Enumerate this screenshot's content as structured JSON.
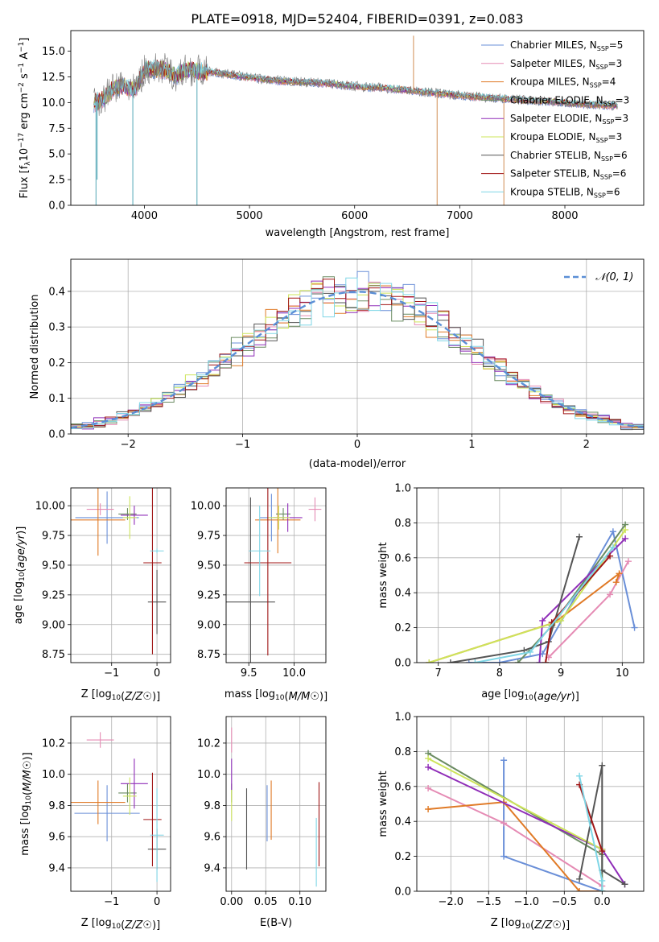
{
  "figure_title": "PLATE=0918, MJD=52404, FIBERID=0391, z=0.083",
  "colors": {
    "Chabrier MILES": "#6a8fd8",
    "Salpeter MILES": "#e58bb4",
    "Kroupa MILES": "#e07a26",
    "Chabrier ELODIE": "#6b8c62",
    "Salpeter ELODIE": "#8f2db8",
    "Kroupa ELODIE": "#cde45a",
    "Chabrier STELIB": "#555555",
    "Salpeter STELIB": "#a01616",
    "Kroupa STELIB": "#7fd6e6"
  },
  "chart_data": [
    {
      "type": "line",
      "title": "PLATE=0918, MJD=52404, FIBERID=0391, z=0.083",
      "xlabel": "wavelength [Angstrom, rest frame]",
      "ylabel": "Flux [f",
      "ylabel_parts": [
        "Flux [f",
        "λ",
        "10",
        "−17",
        " erg cm",
        "−2",
        " s",
        "−1",
        " A",
        "−1",
        "]"
      ],
      "xlim": [
        3300,
        8750
      ],
      "ylim": [
        0,
        17
      ],
      "xticks": [
        4000,
        5000,
        6000,
        7000,
        8000
      ],
      "yticks": [
        0.0,
        2.5,
        5.0,
        7.5,
        10.0,
        12.5,
        15.0
      ],
      "legend": [
        {
          "name": "Chabrier MILES, N",
          "sub": "SSP",
          "tail": "=5"
        },
        {
          "name": "Salpeter MILES, N",
          "sub": "SSP",
          "tail": "=3"
        },
        {
          "name": "Kroupa MILES, N",
          "sub": "SSP",
          "tail": "=4"
        },
        {
          "name": "Chabrier ELODIE, N",
          "sub": "SSP",
          "tail": "=3"
        },
        {
          "name": "Salpeter ELODIE, N",
          "sub": "SSP",
          "tail": "=3"
        },
        {
          "name": "Kroupa ELODIE, N",
          "sub": "SSP",
          "tail": "=3"
        },
        {
          "name": "Chabrier STELIB, N",
          "sub": "SSP",
          "tail": "=6"
        },
        {
          "name": "Salpeter STELIB, N",
          "sub": "SSP",
          "tail": "=6"
        },
        {
          "name": "Kroupa STELIB, N",
          "sub": "SSP",
          "tail": "=6"
        }
      ],
      "legend_placement": "upper-right",
      "model_continuum": {
        "x": [
          3520,
          3600,
          3700,
          3800,
          3900,
          3950,
          4000,
          4100,
          4200,
          4300,
          4400,
          4500,
          4700,
          4900,
          5100,
          5300,
          5500,
          5700,
          5900,
          6100,
          6300,
          6500,
          6700,
          6900,
          7100,
          7300,
          7500,
          7700,
          7900,
          8100,
          8300,
          8500
        ],
        "y": [
          10.0,
          10.3,
          11.3,
          11.7,
          11.2,
          12.0,
          13.2,
          13.3,
          13.2,
          12.6,
          13.2,
          13.1,
          12.9,
          12.6,
          12.3,
          12.1,
          12.0,
          11.9,
          11.7,
          11.5,
          11.4,
          11.2,
          11.0,
          10.8,
          10.6,
          10.5,
          10.3,
          10.2,
          10.1,
          9.9,
          9.8,
          9.7
        ]
      },
      "data_glitches": [
        {
          "x": 3540,
          "y": 0.0
        },
        {
          "x": 3550,
          "y": 2.5
        },
        {
          "x": 3890,
          "y": 0.0
        },
        {
          "x": 4500,
          "y": 0.0
        },
        {
          "x": 6560,
          "y": 16.5
        },
        {
          "x": 6785,
          "y": 0.0
        },
        {
          "x": 7420,
          "y": 0.0
        }
      ]
    },
    {
      "type": "histogram",
      "xlabel": "(data-model)/error",
      "ylabel": "Normed distribution",
      "xlim": [
        -2.5,
        2.5
      ],
      "ylim": [
        0,
        0.49
      ],
      "xticks": [
        -2,
        -1,
        0,
        1,
        2
      ],
      "yticks": [
        0.0,
        0.1,
        0.2,
        0.3,
        0.4
      ],
      "grid": true,
      "bin_width": 0.1,
      "reference_curve": {
        "name": "N(0,1)",
        "label_script": "𝒩(0, 1)",
        "mean": 0,
        "sigma": 1,
        "style": "dashed"
      },
      "legend_placement": "upper-right"
    },
    {
      "type": "scatter",
      "subtype": "errorbar",
      "xlabel": "Z [log10(Z/Z☉)]",
      "ylabel": "age  [log10(age/yr)]",
      "xlim": [
        -1.9,
        0.3
      ],
      "ylim": [
        8.68,
        10.15
      ],
      "xticks": [
        -1,
        0
      ],
      "yticks": [
        8.75,
        9.0,
        9.25,
        9.5,
        9.75,
        10.0
      ],
      "points": [
        {
          "series": "Chabrier MILES",
          "x": -1.1,
          "y": 9.9,
          "xerr": 0.7,
          "yerr": 0.22
        },
        {
          "series": "Salpeter MILES",
          "x": -1.25,
          "y": 9.97,
          "xerr": 0.3,
          "yerr": 0.05
        },
        {
          "series": "Kroupa MILES",
          "x": -1.3,
          "y": 9.88,
          "xerr": 0.6,
          "yerr": 0.3
        },
        {
          "series": "Chabrier ELODIE",
          "x": -0.65,
          "y": 9.93,
          "xerr": 0.2,
          "yerr": 0.05
        },
        {
          "series": "Salpeter ELODIE",
          "x": -0.5,
          "y": 9.92,
          "xerr": 0.3,
          "yerr": 0.08
        },
        {
          "series": "Kroupa ELODIE",
          "x": -0.6,
          "y": 9.9,
          "xerr": 0.15,
          "yerr": 0.18
        },
        {
          "series": "Chabrier STELIB",
          "x": 0.0,
          "y": 9.19,
          "xerr": 0.2,
          "yerr": 0.27
        },
        {
          "series": "Salpeter STELIB",
          "x": -0.1,
          "y": 9.52,
          "xerr": 0.2,
          "yerr": 0.77
        },
        {
          "series": "Kroupa STELIB",
          "x": 0.0,
          "y": 9.62,
          "xerr": 0.15,
          "yerr": 0.02
        }
      ]
    },
    {
      "type": "scatter",
      "subtype": "errorbar",
      "xlabel": "mass [log10(M/M☉)]",
      "ylabel": "",
      "xlim": [
        9.25,
        10.35
      ],
      "ylim": [
        8.68,
        10.15
      ],
      "xticks": [
        9.5,
        10.0
      ],
      "yticks": [
        8.75,
        9.0,
        9.25,
        9.5,
        9.75,
        10.0
      ],
      "points": [
        {
          "series": "Chabrier MILES",
          "x": 9.75,
          "y": 9.9,
          "xerr": 0.13,
          "yerr": 0.2
        },
        {
          "series": "Salpeter MILES",
          "x": 10.23,
          "y": 9.97,
          "xerr": 0.07,
          "yerr": 0.1
        },
        {
          "series": "Kroupa MILES",
          "x": 9.82,
          "y": 9.88,
          "xerr": 0.25,
          "yerr": 0.28
        },
        {
          "series": "Chabrier ELODIE",
          "x": 9.88,
          "y": 9.93,
          "xerr": 0.08,
          "yerr": 0.05
        },
        {
          "series": "Salpeter ELODIE",
          "x": 9.93,
          "y": 9.9,
          "xerr": 0.16,
          "yerr": 0.12
        },
        {
          "series": "Kroupa ELODIE",
          "x": 9.83,
          "y": 9.9,
          "xerr": 0.12,
          "yerr": 0.1
        },
        {
          "series": "Chabrier STELIB",
          "x": 9.52,
          "y": 9.19,
          "xerr": 0.27,
          "yerr": 0.88
        },
        {
          "series": "Salpeter STELIB",
          "x": 9.71,
          "y": 9.52,
          "xerr": 0.26,
          "yerr": 0.78
        },
        {
          "series": "Kroupa STELIB",
          "x": 9.62,
          "y": 9.62,
          "xerr": 0.12,
          "yerr": 0.38
        }
      ]
    },
    {
      "type": "line",
      "xlabel": "age  [log10(age/yr)]",
      "ylabel": "mass weight",
      "xlim": [
        6.65,
        10.35
      ],
      "ylim": [
        0,
        1.0
      ],
      "xticks": [
        7,
        8,
        9,
        10
      ],
      "yticks": [
        0.0,
        0.2,
        0.4,
        0.6,
        0.8,
        1.0
      ],
      "grid": true,
      "series": [
        {
          "name": "Chabrier MILES",
          "x": [
            7.5,
            8.0,
            8.7,
            9.85,
            10.2
          ],
          "y": [
            0.0,
            0.0,
            0.05,
            0.75,
            0.2
          ]
        },
        {
          "name": "Salpeter MILES",
          "x": [
            8.8,
            9.8,
            10.1
          ],
          "y": [
            0.03,
            0.39,
            0.58
          ]
        },
        {
          "name": "Kroupa MILES",
          "x": [
            6.85,
            8.9,
            9.95,
            9.9
          ],
          "y": [
            0.0,
            0.23,
            0.51,
            0.46
          ]
        },
        {
          "name": "Chabrier ELODIE",
          "x": [
            8.3,
            8.85,
            10.05
          ],
          "y": [
            0.0,
            0.21,
            0.79
          ]
        },
        {
          "name": "Salpeter ELODIE",
          "x": [
            8.65,
            8.7,
            10.05
          ],
          "y": [
            0.0,
            0.24,
            0.71
          ]
        },
        {
          "name": "Kroupa ELODIE",
          "x": [
            6.85,
            9.0,
            10.05
          ],
          "y": [
            0.0,
            0.24,
            0.76
          ]
        },
        {
          "name": "Chabrier STELIB",
          "x": [
            7.2,
            8.4,
            8.8,
            9.3
          ],
          "y": [
            0.0,
            0.07,
            0.12,
            0.72
          ]
        },
        {
          "name": "Salpeter STELIB",
          "x": [
            8.75,
            8.85,
            9.8
          ],
          "y": [
            0.0,
            0.23,
            0.61
          ]
        },
        {
          "name": "Kroupa STELIB",
          "x": [
            7.6,
            8.5,
            9.85
          ],
          "y": [
            0.0,
            0.06,
            0.66
          ]
        }
      ]
    },
    {
      "type": "scatter",
      "subtype": "errorbar",
      "xlabel": "Z [log10(Z/Z☉)]",
      "ylabel": "mass [log10(M/M☉)]",
      "xlim": [
        -1.9,
        0.3
      ],
      "ylim": [
        9.25,
        10.37
      ],
      "xticks": [
        -1,
        0
      ],
      "yticks": [
        9.4,
        9.6,
        9.8,
        10.0,
        10.2
      ],
      "points": [
        {
          "series": "Chabrier MILES",
          "x": -1.1,
          "y": 9.75,
          "xerr": 0.72,
          "yerr": 0.18
        },
        {
          "series": "Salpeter MILES",
          "x": -1.25,
          "y": 10.22,
          "xerr": 0.3,
          "yerr": 0.05
        },
        {
          "series": "Kroupa MILES",
          "x": -1.3,
          "y": 9.82,
          "xerr": 0.6,
          "yerr": 0.14
        },
        {
          "series": "Chabrier ELODIE",
          "x": -0.65,
          "y": 9.88,
          "xerr": 0.2,
          "yerr": 0.06
        },
        {
          "series": "Salpeter ELODIE",
          "x": -0.5,
          "y": 9.94,
          "xerr": 0.3,
          "yerr": 0.16
        },
        {
          "series": "Kroupa ELODIE",
          "x": -0.6,
          "y": 9.86,
          "xerr": 0.15,
          "yerr": 0.12
        },
        {
          "series": "Chabrier STELIB",
          "x": 0.0,
          "y": 9.52,
          "xerr": 0.2,
          "yerr": 0.13
        },
        {
          "series": "Salpeter STELIB",
          "x": -0.1,
          "y": 9.71,
          "xerr": 0.2,
          "yerr": 0.3
        },
        {
          "series": "Kroupa STELIB",
          "x": 0.0,
          "y": 9.61,
          "xerr": 0.15,
          "yerr": 0.3
        }
      ]
    },
    {
      "type": "scatter",
      "subtype": "errorbar",
      "xlabel": "E(B-V)",
      "ylabel": "",
      "xlim": [
        -0.008,
        0.138
      ],
      "ylim": [
        9.25,
        10.37
      ],
      "xticks": [
        0.0,
        0.05,
        0.1
      ],
      "yticks": [
        9.4,
        9.6,
        9.8,
        10.0,
        10.2
      ],
      "points": [
        {
          "series": "Chabrier MILES",
          "x": 0.052,
          "y": 9.75,
          "xerr": 0.0,
          "yerr": 0.18
        },
        {
          "series": "Salpeter MILES",
          "x": 0.0,
          "y": 10.22,
          "xerr": 0.0,
          "yerr": 0.08
        },
        {
          "series": "Kroupa MILES",
          "x": 0.058,
          "y": 9.77,
          "xerr": 0.0,
          "yerr": 0.19
        },
        {
          "series": "Chabrier ELODIE",
          "x": 0.0,
          "y": 9.88,
          "xerr": 0.0,
          "yerr": 0.06
        },
        {
          "series": "Salpeter ELODIE",
          "x": 0.0,
          "y": 10.0,
          "xerr": 0.0,
          "yerr": 0.1
        },
        {
          "series": "Kroupa ELODIE",
          "x": 0.0,
          "y": 9.8,
          "xerr": 0.0,
          "yerr": 0.1
        },
        {
          "series": "Chabrier STELIB",
          "x": 0.022,
          "y": 9.65,
          "xerr": 0.0,
          "yerr": 0.26
        },
        {
          "series": "Salpeter STELIB",
          "x": 0.128,
          "y": 9.68,
          "xerr": 0.0,
          "yerr": 0.27
        },
        {
          "series": "Kroupa STELIB",
          "x": 0.124,
          "y": 9.5,
          "xerr": 0.0,
          "yerr": 0.22
        }
      ]
    },
    {
      "type": "line",
      "xlabel": "Z [log10(Z/Z☉)]",
      "ylabel": "mass weight",
      "xlim": [
        -2.45,
        0.55
      ],
      "ylim": [
        0,
        1.0
      ],
      "xticks": [
        -2.0,
        -1.5,
        -1.0,
        -0.5,
        0.0
      ],
      "yticks": [
        0.0,
        0.2,
        0.4,
        0.6,
        0.8,
        1.0
      ],
      "grid": true,
      "series": [
        {
          "name": "Chabrier MILES",
          "x": [
            -1.3,
            -1.3,
            0.0
          ],
          "y": [
            0.75,
            0.2,
            0.0
          ]
        },
        {
          "name": "Salpeter MILES",
          "x": [
            -2.3,
            -1.3,
            0.0
          ],
          "y": [
            0.59,
            0.39,
            0.03
          ]
        },
        {
          "name": "Kroupa MILES",
          "x": [
            -2.3,
            -1.3,
            -0.3,
            0.0
          ],
          "y": [
            0.47,
            0.51,
            0.0,
            0.0
          ]
        },
        {
          "name": "Chabrier ELODIE",
          "x": [
            -2.3,
            0.0,
            0.0
          ],
          "y": [
            0.79,
            0.21,
            0.0
          ]
        },
        {
          "name": "Salpeter ELODIE",
          "x": [
            -2.3,
            0.0,
            0.3
          ],
          "y": [
            0.71,
            0.24,
            0.04
          ]
        },
        {
          "name": "Kroupa ELODIE",
          "x": [
            -2.3,
            0.0
          ],
          "y": [
            0.76,
            0.24
          ]
        },
        {
          "name": "Chabrier STELIB",
          "x": [
            -0.3,
            0.0,
            0.0,
            0.3
          ],
          "y": [
            0.07,
            0.72,
            0.12,
            0.04
          ]
        },
        {
          "name": "Salpeter STELIB",
          "x": [
            -0.3,
            0.0
          ],
          "y": [
            0.61,
            0.23
          ]
        },
        {
          "name": "Kroupa STELIB",
          "x": [
            -0.3,
            0.0,
            0.0
          ],
          "y": [
            0.66,
            0.06,
            0.0
          ]
        }
      ]
    }
  ]
}
